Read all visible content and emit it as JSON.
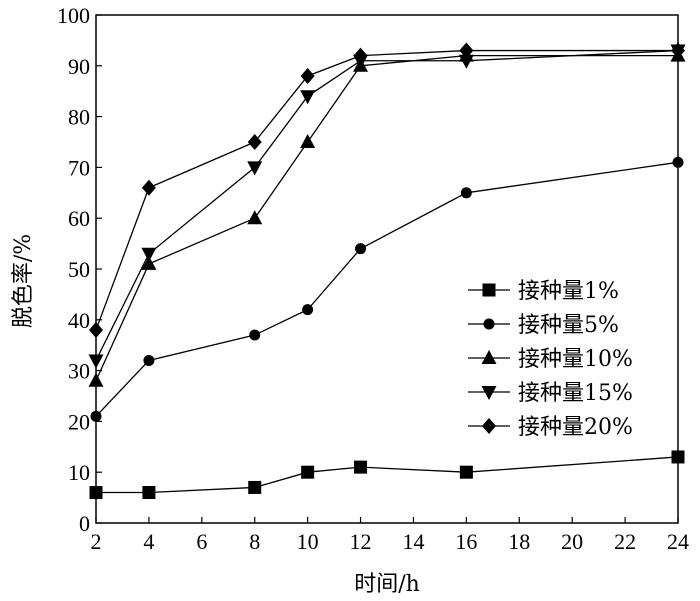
{
  "chart_data": {
    "type": "line",
    "title": "",
    "xlabel": "时间/h",
    "ylabel": "脱色率/%",
    "x": [
      2,
      4,
      8,
      10,
      12,
      16,
      24
    ],
    "xlim": [
      2,
      24
    ],
    "ylim": [
      0,
      100
    ],
    "xticks": [
      2,
      4,
      6,
      8,
      10,
      12,
      14,
      16,
      18,
      20,
      22,
      24
    ],
    "yticks": [
      0,
      10,
      20,
      30,
      40,
      50,
      60,
      70,
      80,
      90,
      100
    ],
    "grid": false,
    "legend_position": "right",
    "series": [
      {
        "name": "接种量1%",
        "marker": "square",
        "values": [
          6,
          6,
          7,
          10,
          11,
          10,
          13
        ]
      },
      {
        "name": "接种量5%",
        "marker": "circle",
        "values": [
          21,
          32,
          37,
          42,
          54,
          65,
          71
        ]
      },
      {
        "name": "接种量10%",
        "marker": "triangle-up",
        "values": [
          28,
          51,
          60,
          75,
          90,
          92,
          92
        ]
      },
      {
        "name": "接种量15%",
        "marker": "triangle-down",
        "values": [
          32,
          53,
          70,
          84,
          91,
          91,
          93
        ]
      },
      {
        "name": "接种量20%",
        "marker": "diamond",
        "values": [
          38,
          66,
          75,
          88,
          92,
          93,
          93
        ]
      }
    ],
    "colors": {
      "line": "#000000",
      "marker": "#000000"
    }
  }
}
